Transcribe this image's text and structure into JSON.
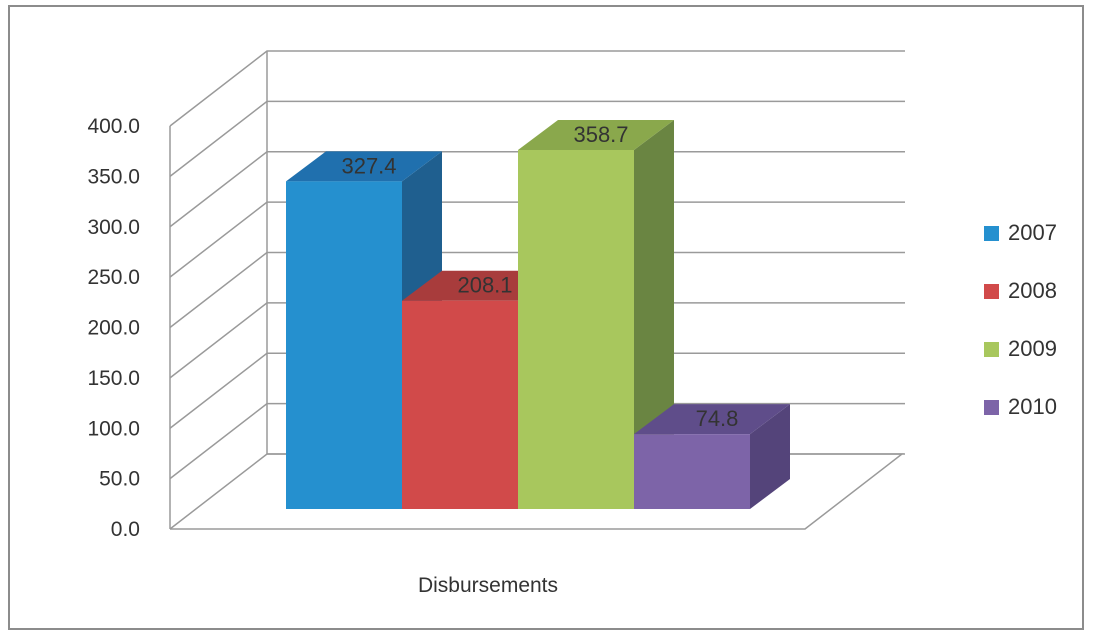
{
  "chart_data": {
    "type": "bar",
    "categories": [
      "Disbursements"
    ],
    "series": [
      {
        "name": "2007",
        "values": [
          327.4
        ],
        "color": "#2590cf",
        "side_color": "#1f5f8f",
        "top_color": "#2070ae"
      },
      {
        "name": "2008",
        "values": [
          208.1
        ],
        "color": "#d14a4a",
        "side_color": "#8f3434",
        "top_color": "#a83c3c"
      },
      {
        "name": "2009",
        "values": [
          358.7
        ],
        "color": "#a8c75d",
        "side_color": "#6a8542",
        "top_color": "#8aa84c"
      },
      {
        "name": "2010",
        "values": [
          74.8
        ],
        "color": "#7d64a8",
        "side_color": "#54447a",
        "top_color": "#5f4d8a"
      }
    ],
    "data_labels": [
      "327.4",
      "208.1",
      "358.7",
      "74.8"
    ],
    "y_ticks": [
      "0.0",
      "50.0",
      "100.0",
      "150.0",
      "200.0",
      "250.0",
      "300.0",
      "350.0",
      "400.0"
    ],
    "ylim": [
      0,
      400
    ],
    "title": "",
    "xlabel": "",
    "ylabel": "",
    "grid": true,
    "legend_position": "right",
    "projection": "3d"
  }
}
